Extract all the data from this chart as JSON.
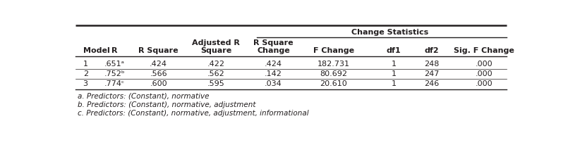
{
  "title": "Change Statistics",
  "rows": [
    [
      "1",
      ".651ᵃ",
      ".424",
      ".422",
      ".424",
      "182.731",
      "1",
      "248",
      ".000"
    ],
    [
      "2",
      ".752ᵇ",
      ".566",
      ".562",
      ".142",
      "80.692",
      "1",
      "247",
      ".000"
    ],
    [
      "3",
      ".774ᶜ",
      ".600",
      ".595",
      ".034",
      "20.610",
      "1",
      "246",
      ".000"
    ]
  ],
  "footnotes": [
    "a. Predictors: (Constant), normative",
    "b. Predictors: (Constant), normative, adjustment",
    "c. Predictors: (Constant), normative, adjustment, informational"
  ],
  "background_color": "#ffffff",
  "text_color": "#231f20",
  "font_size": 8.0,
  "bold_font_size": 8.0
}
